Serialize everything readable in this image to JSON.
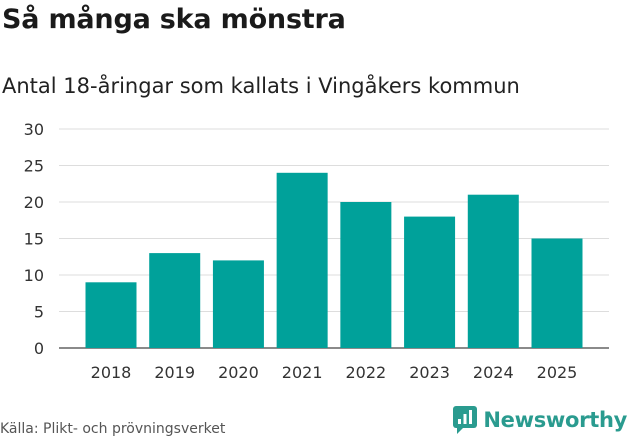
{
  "header": {
    "title": "Så många ska mönstra"
  },
  "chart_data": {
    "type": "bar",
    "title": "Så många ska mönstra",
    "subtitle": "Antal 18-åringar som kallats i Vingåkers kommun",
    "categories": [
      "2018",
      "2019",
      "2020",
      "2021",
      "2022",
      "2023",
      "2024",
      "2025"
    ],
    "values": [
      9,
      13,
      12,
      24,
      20,
      18,
      21,
      15
    ],
    "xlabel": "",
    "ylabel": "",
    "ylim": [
      0,
      30
    ],
    "yticks": [
      "0",
      "5",
      "10",
      "15",
      "20",
      "25",
      "30"
    ],
    "grid": true,
    "legend": "none",
    "bar_color": "#00a19a"
  },
  "footer": {
    "source": "Källa: Plikt- och prövningsverket",
    "brand": "Newsworthy",
    "brand_color": "#2a9b8f"
  }
}
